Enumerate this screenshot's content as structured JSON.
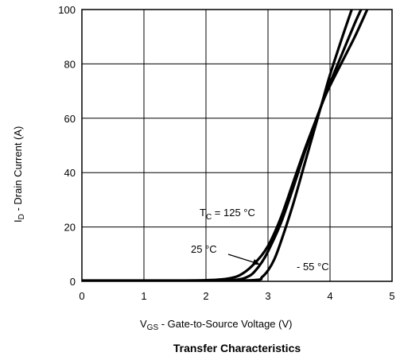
{
  "chart_data": {
    "type": "line",
    "title": "Transfer Characteristics",
    "xlabel": {
      "main": "V",
      "sub": "GS",
      "rest": "  -   Gate-to-Source Voltage (V)"
    },
    "ylabel": {
      "main": "I",
      "sub": "D",
      "rest": "  -   Drain Current (A)"
    },
    "xlim": [
      0,
      5
    ],
    "ylim": [
      0,
      100
    ],
    "xticks": [
      "0",
      "1",
      "2",
      "3",
      "4",
      "5"
    ],
    "yticks": [
      "0",
      "20",
      "40",
      "60",
      "80",
      "100"
    ],
    "grid": true,
    "series": [
      {
        "name": "T_C = 125 °C",
        "points": [
          [
            0,
            0.3
          ],
          [
            1,
            0.3
          ],
          [
            2,
            0.4
          ],
          [
            2.4,
            1.2
          ],
          [
            2.6,
            3
          ],
          [
            2.8,
            7
          ],
          [
            3.0,
            13
          ],
          [
            3.2,
            23
          ],
          [
            3.4,
            36
          ],
          [
            3.6,
            49
          ],
          [
            3.8,
            61
          ],
          [
            3.9,
            67
          ],
          [
            4.0,
            72
          ],
          [
            4.2,
            81
          ],
          [
            4.4,
            90
          ],
          [
            4.6,
            100
          ]
        ]
      },
      {
        "name": "25 °C",
        "points": [
          [
            0,
            0.2
          ],
          [
            1,
            0.2
          ],
          [
            2,
            0.2
          ],
          [
            2.5,
            0.6
          ],
          [
            2.7,
            2
          ],
          [
            2.8,
            4
          ],
          [
            2.9,
            7
          ],
          [
            3.0,
            11
          ],
          [
            3.2,
            21
          ],
          [
            3.4,
            34
          ],
          [
            3.6,
            48
          ],
          [
            3.8,
            61
          ],
          [
            3.9,
            67
          ],
          [
            4.0,
            73
          ],
          [
            4.2,
            84
          ],
          [
            4.4,
            95
          ],
          [
            4.5,
            100
          ]
        ]
      },
      {
        "name": "- 55 °C",
        "points": [
          [
            0,
            0.1
          ],
          [
            1,
            0.1
          ],
          [
            2,
            0.1
          ],
          [
            2.8,
            0.5
          ],
          [
            2.9,
            1.5
          ],
          [
            3.0,
            4
          ],
          [
            3.1,
            8
          ],
          [
            3.2,
            14
          ],
          [
            3.4,
            28
          ],
          [
            3.6,
            44
          ],
          [
            3.8,
            60
          ],
          [
            3.9,
            68
          ],
          [
            4.0,
            76
          ],
          [
            4.2,
            90
          ],
          [
            4.35,
            100
          ]
        ]
      }
    ],
    "annotations": {
      "tc": {
        "main": "T",
        "sub": "C",
        "rest": " = 125 °C"
      },
      "t25": "25 °C",
      "tm55": "- 55 °C"
    }
  }
}
